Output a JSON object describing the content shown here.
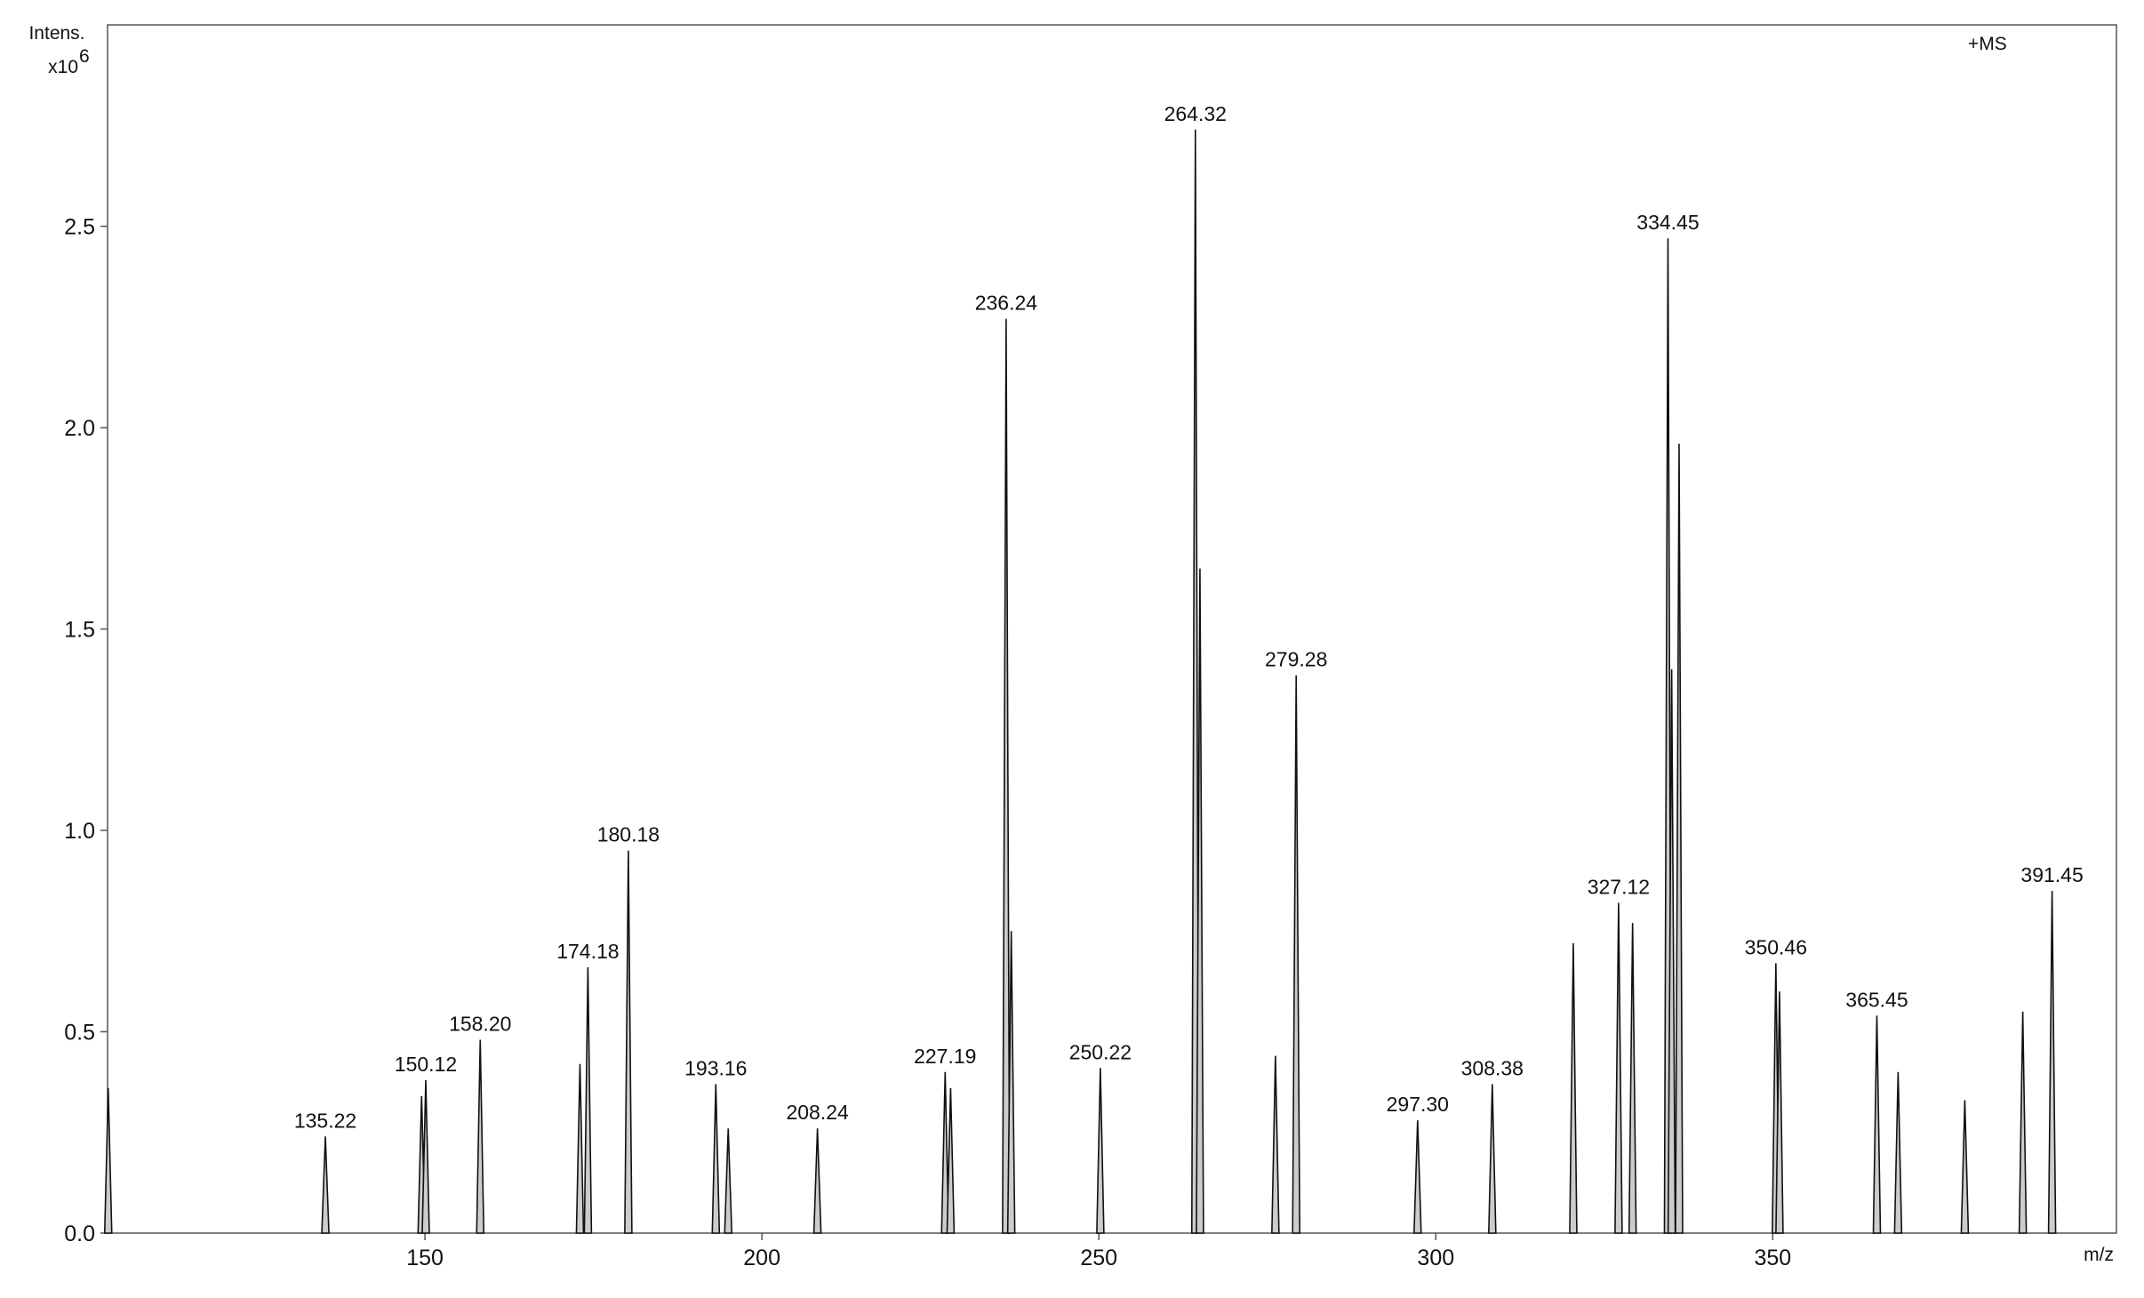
{
  "chart_data": {
    "type": "spectrum",
    "y_title": "Intens.",
    "y_scale_base": "x10",
    "y_scale_exp": "6",
    "mode_label": "+MS",
    "x_title": "m/z",
    "x": [
      103,
      135.22,
      149.5,
      150.12,
      158.2,
      173,
      174.18,
      180.18,
      193.16,
      195,
      208.24,
      227.19,
      228,
      236.24,
      237,
      250.22,
      264.32,
      265,
      276.2,
      279.28,
      297.3,
      308.38,
      320.4,
      327.12,
      329.2,
      334.45,
      335,
      336.1,
      350.46,
      351,
      365.45,
      368.6,
      378.5,
      387.1,
      391.45
    ],
    "values": [
      0.36,
      0.24,
      0.34,
      0.38,
      0.48,
      0.42,
      0.66,
      0.95,
      0.37,
      0.26,
      0.26,
      0.4,
      0.36,
      2.27,
      0.75,
      0.41,
      2.74,
      1.65,
      0.44,
      1.385,
      0.28,
      0.37,
      0.72,
      0.82,
      0.77,
      2.47,
      1.4,
      1.96,
      0.67,
      0.6,
      0.54,
      0.4,
      0.33,
      0.55,
      0.85
    ],
    "x_labels": [
      null,
      "135.22",
      null,
      "150.12",
      "158.20",
      null,
      "174.18",
      "180.18",
      "193.16",
      null,
      "208.24",
      "227.19",
      null,
      "236.24",
      null,
      "250.22",
      "264.32",
      null,
      null,
      "279.28",
      "297.30",
      "308.38",
      null,
      "327.12",
      null,
      "334.45",
      null,
      null,
      "350.46",
      null,
      "365.45",
      null,
      null,
      null,
      "391.45"
    ],
    "color": "#111111",
    "fill": "#cccccc",
    "xlim": [
      102.9,
      401
    ],
    "xticks": [
      150,
      200,
      250,
      300,
      350
    ],
    "ylim": [
      0,
      3.0
    ],
    "yticks": [
      {
        "value": 0,
        "label": "0.0"
      },
      {
        "value": 0.5,
        "label": "0.5"
      },
      {
        "value": 1,
        "label": "1.0"
      },
      {
        "value": 1.5,
        "label": "1.5"
      },
      {
        "value": 2,
        "label": "2.0"
      },
      {
        "value": 2.5,
        "label": "2.5"
      }
    ]
  }
}
